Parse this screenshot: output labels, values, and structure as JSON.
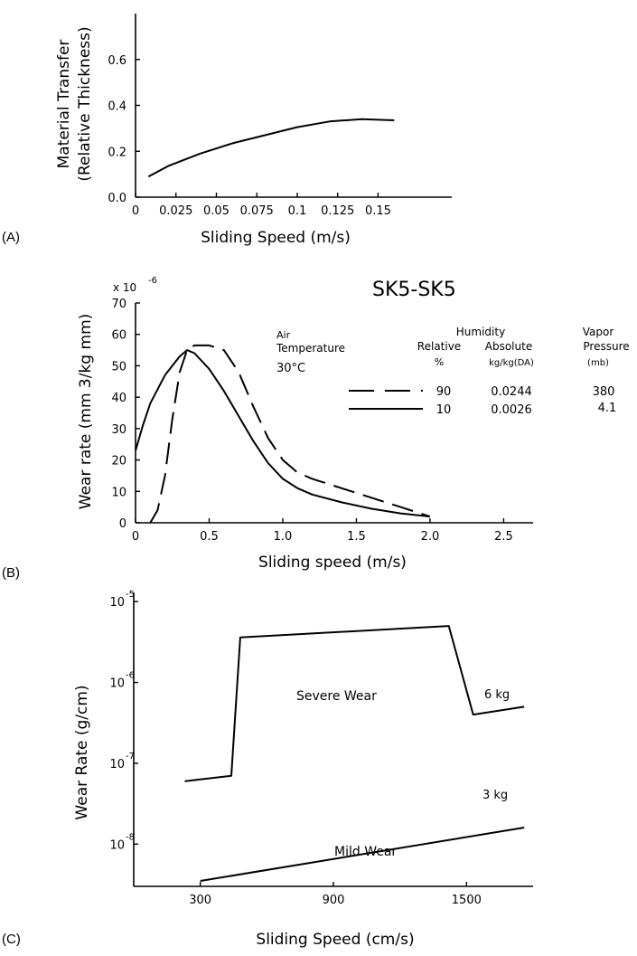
{
  "chart_data": [
    {
      "type": "line",
      "panel_label": "(A)",
      "xlabel": "Sliding Speed (m/s)",
      "ylabel_line1": "Material Transfer",
      "ylabel_line2": "(Relative Thickness)",
      "xlim": [
        0,
        0.19
      ],
      "ylim": [
        0,
        0.8
      ],
      "x_ticks": [
        "0",
        "0.025",
        "0.05",
        "0.075",
        "0.1",
        "0.125",
        "0.15"
      ],
      "x_tick_values": [
        0,
        0.025,
        0.05,
        0.075,
        0.1,
        0.125,
        0.15
      ],
      "y_ticks": [
        "0.0",
        "0.2",
        "0.4",
        "0.6"
      ],
      "y_tick_values": [
        0,
        0.2,
        0.4,
        0.6
      ],
      "series": [
        {
          "style": "solid",
          "x": [
            0.008,
            0.02,
            0.04,
            0.06,
            0.08,
            0.1,
            0.12,
            0.14,
            0.16
          ],
          "values": [
            0.09,
            0.135,
            0.19,
            0.235,
            0.27,
            0.305,
            0.33,
            0.34,
            0.335
          ]
        }
      ]
    },
    {
      "type": "line",
      "panel_label": "(B)",
      "title": "SK5-SK5",
      "xlabel": "Sliding speed (m/s)",
      "ylabel": "Wear rate (mm 3/kg mm)",
      "y_multiplier": "x 10",
      "y_multiplier_exp": "-6",
      "xlim": [
        0,
        2.7
      ],
      "ylim": [
        0,
        70
      ],
      "x_ticks": [
        "0",
        "0.5",
        "1.0",
        "1.5",
        "2.0",
        "2.5"
      ],
      "x_tick_values": [
        0,
        0.5,
        1.0,
        1.5,
        2.0,
        2.5
      ],
      "y_ticks": [
        "0",
        "10",
        "20",
        "30",
        "40",
        "50",
        "60",
        "70"
      ],
      "y_tick_values": [
        0,
        10,
        20,
        30,
        40,
        50,
        60,
        70
      ],
      "conditions": {
        "air_temperature_label_1": "Air",
        "air_temperature_label_2": "Temperature",
        "air_temperature_value": "30°C",
        "humidity_header": "Humidity",
        "relative_header": "Relative",
        "relative_unit": "%",
        "absolute_header": "Absolute",
        "absolute_unit": "kg/kg(DA)",
        "vapor_header_1": "Vapor",
        "vapor_header_2": "Pressure",
        "vapor_unit": "(mb)"
      },
      "legend": [
        {
          "style": "dashed",
          "relative": "90",
          "absolute": "0.0244",
          "vapor": "380"
        },
        {
          "style": "solid",
          "relative": "10",
          "absolute": "0.0026",
          "vapor": "4.1"
        }
      ],
      "series": [
        {
          "style": "dashed",
          "x": [
            0.1,
            0.15,
            0.2,
            0.25,
            0.3,
            0.35,
            0.4,
            0.5,
            0.6,
            0.7,
            0.8,
            0.9,
            1.0,
            1.1,
            1.2,
            1.4,
            1.6,
            1.8,
            2.0
          ],
          "values": [
            0,
            4,
            15,
            33,
            48,
            55,
            56.5,
            56.5,
            55,
            48,
            37,
            27,
            20,
            16,
            14,
            11,
            8,
            5,
            2
          ]
        },
        {
          "style": "solid",
          "x": [
            0,
            0.05,
            0.1,
            0.2,
            0.3,
            0.35,
            0.4,
            0.5,
            0.6,
            0.7,
            0.8,
            0.9,
            1.0,
            1.1,
            1.2,
            1.4,
            1.6,
            1.8,
            2.0
          ],
          "values": [
            23,
            31,
            38,
            47,
            53,
            55,
            54,
            49,
            42,
            34,
            26,
            19,
            14,
            11,
            9,
            6.5,
            4.5,
            3,
            2
          ]
        }
      ]
    },
    {
      "type": "line",
      "panel_label": "(C)",
      "xlabel": "Sliding Speed (cm/s)",
      "ylabel": "Wear Rate (g/cm)",
      "y_scale": "log",
      "xlim": [
        0,
        1800
      ],
      "x_ticks": [
        "300",
        "900",
        "1500"
      ],
      "x_tick_values": [
        300,
        900,
        1500
      ],
      "y_ticks": [
        "10",
        "10",
        "10",
        "10"
      ],
      "y_tick_exps": [
        "-5",
        "-6",
        "-7",
        "-8"
      ],
      "y_tick_values": [
        1e-05,
        1e-06,
        1e-07,
        1e-08
      ],
      "ylim": [
        3e-09,
        1.3e-05
      ],
      "annotations": {
        "severe": "Severe Wear",
        "mild": "Mild Wear",
        "load_6": "6 kg",
        "load_3": "3 kg"
      },
      "series": [
        {
          "style": "solid",
          "x": [
            230,
            440,
            480,
            1420,
            1530,
            1760
          ],
          "values": [
            6e-08,
            7e-08,
            3.6e-06,
            5e-06,
            4e-07,
            5e-07
          ]
        },
        {
          "style": "solid",
          "x": [
            300,
            1760
          ],
          "values": [
            3.5e-09,
            1.6e-08
          ]
        }
      ]
    }
  ]
}
